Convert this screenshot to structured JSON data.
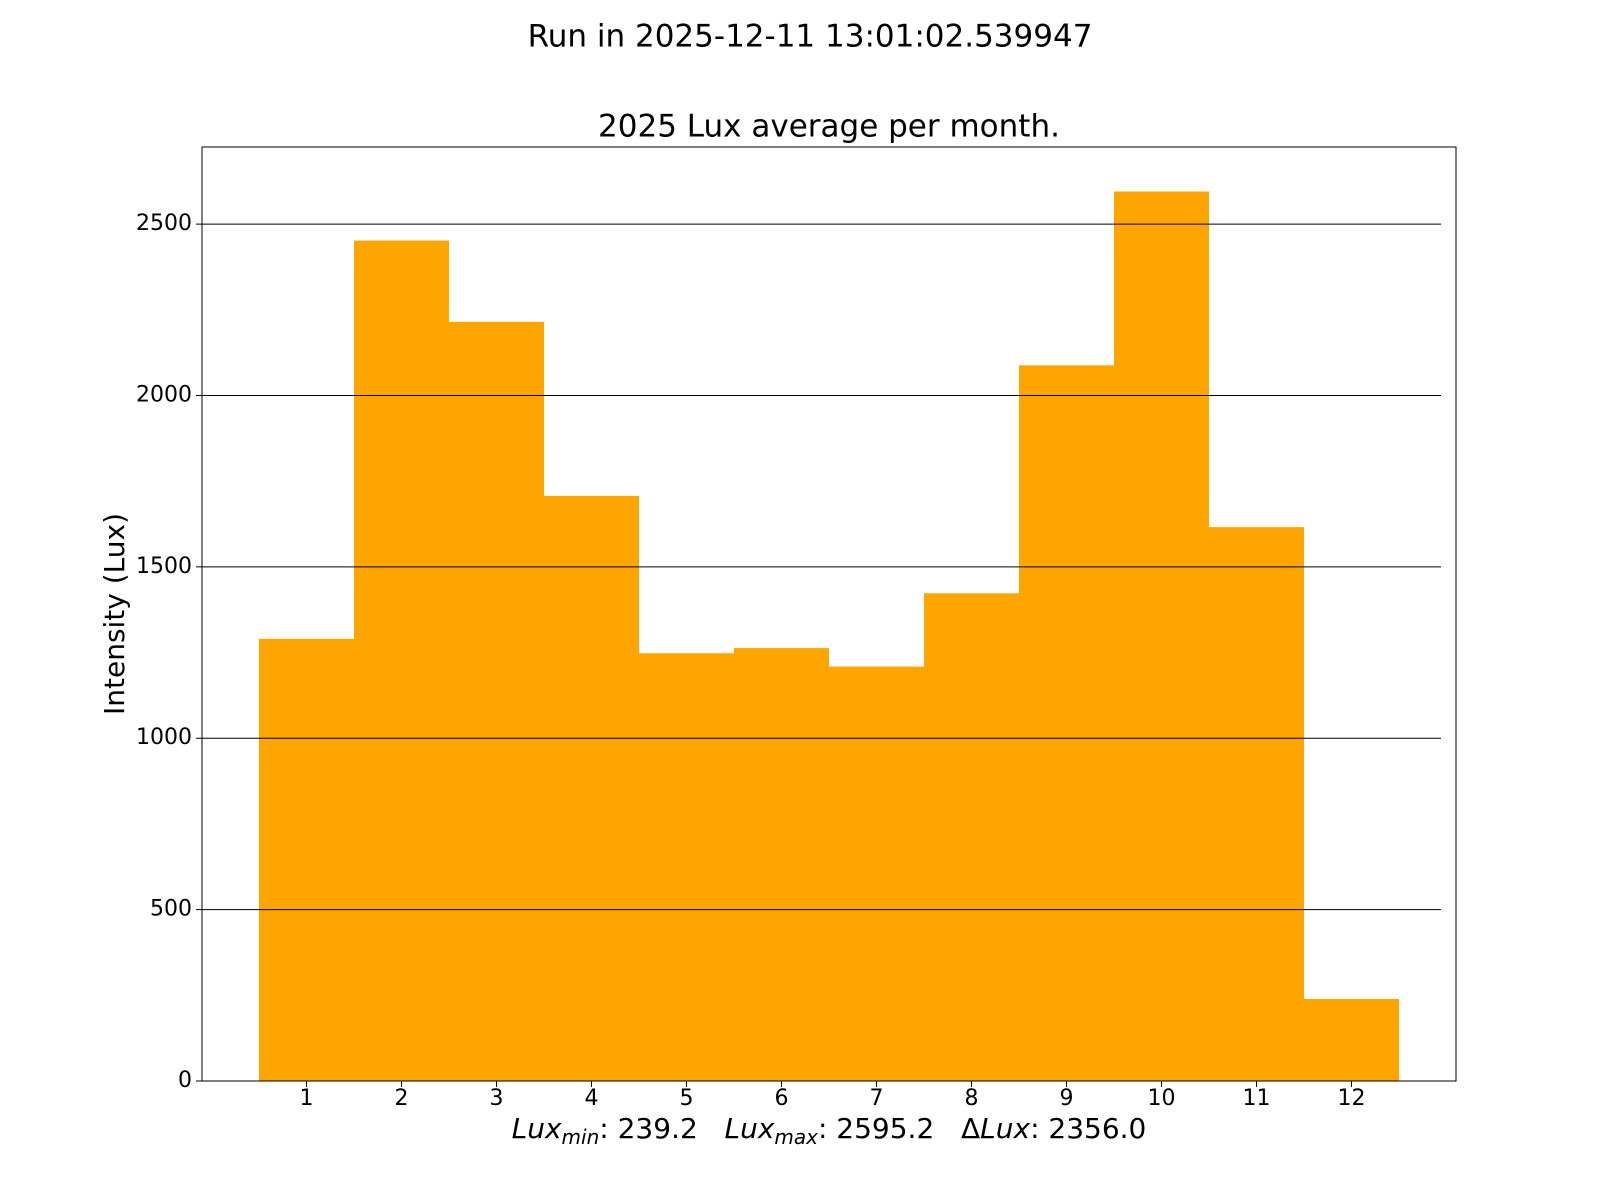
{
  "chart_data": {
    "type": "bar",
    "suptitle": "Run in 2025-12-11 13:01:02.539947",
    "title": "2025 Lux average per month.",
    "ylabel": "Intensity (Lux)",
    "xlabel_parts": [
      {
        "sym": "Lux",
        "sub": "min",
        "rest": ": 239.2"
      },
      {
        "sym": "Lux",
        "sub": "max",
        "rest": ": 2595.2"
      },
      {
        "prefix": "Δ",
        "sym": "Lux",
        "rest": ": 2356.0"
      }
    ],
    "x": [
      1,
      2,
      3,
      4,
      5,
      6,
      7,
      8,
      9,
      10,
      11,
      12
    ],
    "values": [
      1290,
      2452,
      2215,
      1707,
      1248,
      1263,
      1209,
      1423,
      2088,
      2595.2,
      1616,
      239.2
    ],
    "color": "#ffa500",
    "xlim": [
      -0.1,
      13.1
    ],
    "xticks": [
      1,
      2,
      3,
      4,
      5,
      6,
      7,
      8,
      9,
      10,
      11,
      12
    ],
    "ylim": [
      0,
      2725
    ],
    "yticks": [
      0,
      500,
      1000,
      1500,
      2000,
      2500
    ],
    "grid": "y"
  }
}
